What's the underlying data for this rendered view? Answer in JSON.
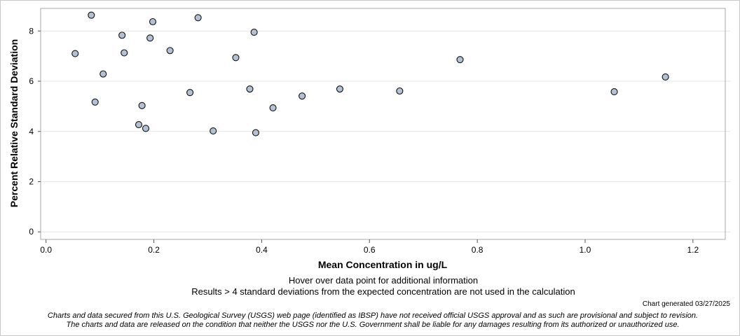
{
  "chart_data": {
    "type": "scatter",
    "title": "",
    "xlabel": "Mean Concentration in ug/L",
    "ylabel": "Percent Relative Standard Deviation",
    "xlim": [
      -0.01,
      1.26
    ],
    "ylim": [
      -0.3,
      8.9
    ],
    "xticks": [
      0.0,
      0.2,
      0.4,
      0.6,
      0.8,
      1.0,
      1.2
    ],
    "xtick_labels": [
      "0.0",
      "0.2",
      "0.4",
      "0.6",
      "0.8",
      "1.0",
      "1.2"
    ],
    "yticks": [
      0,
      2,
      4,
      6,
      8
    ],
    "ytick_labels": [
      "0",
      "2",
      "4",
      "6",
      "8"
    ],
    "grid": true,
    "points": [
      {
        "x": 0.054,
        "y": 7.1
      },
      {
        "x": 0.084,
        "y": 8.63
      },
      {
        "x": 0.091,
        "y": 5.17
      },
      {
        "x": 0.106,
        "y": 6.29
      },
      {
        "x": 0.141,
        "y": 7.83
      },
      {
        "x": 0.145,
        "y": 7.13
      },
      {
        "x": 0.172,
        "y": 4.27
      },
      {
        "x": 0.178,
        "y": 5.03
      },
      {
        "x": 0.185,
        "y": 4.12
      },
      {
        "x": 0.193,
        "y": 7.72
      },
      {
        "x": 0.198,
        "y": 8.37
      },
      {
        "x": 0.23,
        "y": 7.22
      },
      {
        "x": 0.267,
        "y": 5.55
      },
      {
        "x": 0.282,
        "y": 8.53
      },
      {
        "x": 0.31,
        "y": 4.02
      },
      {
        "x": 0.352,
        "y": 6.94
      },
      {
        "x": 0.378,
        "y": 5.69
      },
      {
        "x": 0.386,
        "y": 7.95
      },
      {
        "x": 0.389,
        "y": 3.95
      },
      {
        "x": 0.421,
        "y": 4.94
      },
      {
        "x": 0.475,
        "y": 5.41
      },
      {
        "x": 0.545,
        "y": 5.69
      },
      {
        "x": 0.656,
        "y": 5.61
      },
      {
        "x": 0.768,
        "y": 6.86
      },
      {
        "x": 1.054,
        "y": 5.58
      },
      {
        "x": 1.149,
        "y": 6.17
      }
    ]
  },
  "notes": {
    "hover": "Hover over data point for additional information",
    "results": "Results > 4 standard deviations from the expected concentration are not used in the calculation",
    "generated": "Chart generated 03/27/2025",
    "disclaimer_line1": "Charts and data secured from this U.S. Geological Survey (USGS) web page (identified as IBSP) have not received official USGS approval and as such are provisional and subject to revision.",
    "disclaimer_line2": "The charts and data are released on the condition that neither the USGS nor the U.S. Government shall be liable for any damages resulting from its authorized or unauthorized use."
  },
  "colors": {
    "marker_fill": "#b3c1d2",
    "marker_stroke": "#111111",
    "grid": "#e4e4e4",
    "plot_border": "#a8a8a8"
  }
}
